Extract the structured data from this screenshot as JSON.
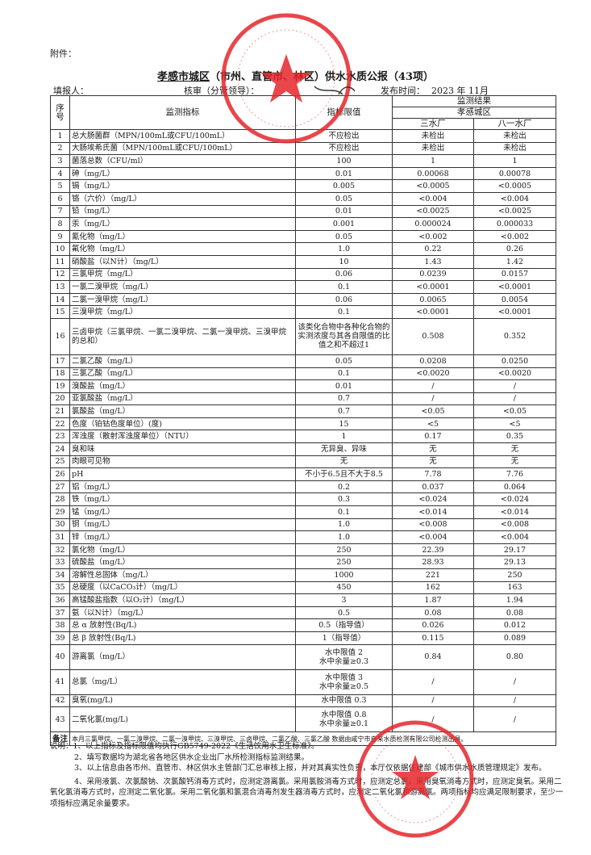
{
  "attachment_label": "附件：",
  "title_underlined": "孝感市城区",
  "title_rest": "（市州、直管市、林区）供水水质公报（43项）",
  "meta": {
    "filler_label": "填报人：",
    "reviewer_label": "核审（分管领导）：",
    "publish_label": "发布时间：",
    "publish_date": "2023 年 11月"
  },
  "table": {
    "headers": {
      "seq": "序号",
      "indicator": "监测指标",
      "limit": "指标限值",
      "results": "监测结果",
      "district": "孝感城区",
      "plant1": "三水厂",
      "plant2": "八一水厂"
    },
    "rows": [
      {
        "no": "1",
        "name": "总大肠菌群（MPN/100mL或CFU/100mL）",
        "limit": "不应检出",
        "p1": "未检出",
        "p2": "未检出"
      },
      {
        "no": "2",
        "name": "大肠埃希氏菌（MPN/100mL或CFU/100mL）",
        "limit": "不应检出",
        "p1": "未检出",
        "p2": "未检出"
      },
      {
        "no": "3",
        "name": "菌落总数（CFU/ml）",
        "limit": "100",
        "p1": "1",
        "p2": "1"
      },
      {
        "no": "4",
        "name": "砷（mg/L）",
        "limit": "0.01",
        "p1": "0.00068",
        "p2": "0.00078"
      },
      {
        "no": "5",
        "name": "镉（mg/L）",
        "limit": "0.005",
        "p1": "<0.0005",
        "p2": "<0.0005"
      },
      {
        "no": "6",
        "name": "铬（六价）（mg/L）",
        "limit": "0.05",
        "p1": "<0.004",
        "p2": "<0.004"
      },
      {
        "no": "7",
        "name": "铅（mg/L）",
        "limit": "0.01",
        "p1": "<0.0025",
        "p2": "<0.0025"
      },
      {
        "no": "8",
        "name": "汞（mg/L）",
        "limit": "0.001",
        "p1": "0.000024",
        "p2": "0.000033"
      },
      {
        "no": "9",
        "name": "氰化物（mg/L）",
        "limit": "0.05",
        "p1": "<0.002",
        "p2": "<0.002"
      },
      {
        "no": "10",
        "name": "氟化物（mg/L）",
        "limit": "1.0",
        "p1": "0.22",
        "p2": "0.26"
      },
      {
        "no": "11",
        "name": "硝酸盐（以N计）（mg/L）",
        "limit": "10",
        "p1": "1.43",
        "p2": "1.42"
      },
      {
        "no": "12",
        "name": "三氯甲烷（mg/L）",
        "limit": "0.06",
        "p1": "0.0239",
        "p2": "0.0157"
      },
      {
        "no": "13",
        "name": "一氯二溴甲烷（mg/L）",
        "limit": "0.1",
        "p1": "<0.0001",
        "p2": "<0.0001"
      },
      {
        "no": "14",
        "name": "二氯一溴甲烷（mg/L）",
        "limit": "0.06",
        "p1": "0.0065",
        "p2": "0.0054"
      },
      {
        "no": "15",
        "name": "三溴甲烷（mg/L）",
        "limit": "0.1",
        "p1": "<0.0001",
        "p2": "<0.0001"
      },
      {
        "no": "16",
        "name": "三卤甲烷（三氯甲烷、一氯二溴甲烷、二氯一溴甲烷、三溴甲烷的总和）",
        "limit": "该类化合物中各种化合物的实测浓度与其各自限值的比值之和不超过1",
        "p1": "0.508",
        "p2": "0.352",
        "tall": 3
      },
      {
        "no": "17",
        "name": "二氯乙酸（mg/L）",
        "limit": "0.05",
        "p1": "0.0208",
        "p2": "0.0250"
      },
      {
        "no": "18",
        "name": "三氯乙酸（mg/L）",
        "limit": "0.1",
        "p1": "<0.0020",
        "p2": "<0.0020"
      },
      {
        "no": "19",
        "name": "溴酸盐（mg/L）",
        "limit": "0.01",
        "p1": "/",
        "p2": "/"
      },
      {
        "no": "20",
        "name": "亚氯酸盐（mg/L）",
        "limit": "0.7",
        "p1": "/",
        "p2": "/"
      },
      {
        "no": "21",
        "name": "氯酸盐（mg/L）",
        "limit": "0.7",
        "p1": "<0.05",
        "p2": "<0.05"
      },
      {
        "no": "22",
        "name": "色度（铂钴色度单位）(度)",
        "limit": "15",
        "p1": "<5",
        "p2": "<5"
      },
      {
        "no": "23",
        "name": "浑浊度（散射浑浊度单位）（NTU）",
        "limit": "1",
        "p1": "0.17",
        "p2": "0.35"
      },
      {
        "no": "24",
        "name": "臭和味",
        "limit": "无异臭、异味",
        "p1": "无",
        "p2": "无"
      },
      {
        "no": "25",
        "name": "肉眼可见物",
        "limit": "无",
        "p1": "无",
        "p2": "无"
      },
      {
        "no": "26",
        "name": "pH",
        "limit": "不小于6.5且不大于8.5",
        "p1": "7.78",
        "p2": "7.76"
      },
      {
        "no": "27",
        "name": "铝（mg/L）",
        "limit": "0.2",
        "p1": "0.037",
        "p2": "0.064"
      },
      {
        "no": "28",
        "name": "铁（mg/L）",
        "limit": "0.3",
        "p1": "<0.024",
        "p2": "<0.024"
      },
      {
        "no": "29",
        "name": "锰（mg/L）",
        "limit": "0.1",
        "p1": "<0.014",
        "p2": "<0.014"
      },
      {
        "no": "30",
        "name": "铜（mg/L）",
        "limit": "1.0",
        "p1": "<0.008",
        "p2": "<0.008"
      },
      {
        "no": "31",
        "name": "锌（mg/L）",
        "limit": "1.0",
        "p1": "<0.004",
        "p2": "<0.004"
      },
      {
        "no": "32",
        "name": "氯化物（mg/L）",
        "limit": "250",
        "p1": "22.39",
        "p2": "29.17"
      },
      {
        "no": "33",
        "name": "硫酸盐（mg/L）",
        "limit": "250",
        "p1": "28.93",
        "p2": "29.13"
      },
      {
        "no": "34",
        "name": "溶解性总固体（mg/L）",
        "limit": "1000",
        "p1": "221",
        "p2": "250"
      },
      {
        "no": "35",
        "name": "总硬度（以CaCO₃计）（mg/L）",
        "limit": "450",
        "p1": "162",
        "p2": "163"
      },
      {
        "no": "36",
        "name": "高锰酸盐指数（以O₂计）（mg/L）",
        "limit": "3",
        "p1": "1.87",
        "p2": "1.94"
      },
      {
        "no": "37",
        "name": "氨（以N计）（mg/L）",
        "limit": "0.5",
        "p1": "0.08",
        "p2": "0.08"
      },
      {
        "no": "38",
        "name": "总 α 放射性(Bq/L)",
        "limit": "0.5（指导值）",
        "p1": "0.026",
        "p2": "0.012"
      },
      {
        "no": "39",
        "name": "总 β 放射性(Bq/L)",
        "limit": "1（指导值）",
        "p1": "0.115",
        "p2": "0.089"
      },
      {
        "no": "40",
        "name": "游离氯（mg/L）",
        "limit": "水中限值 2\n水中余量≥0.3",
        "p1": "0.84",
        "p2": "0.80",
        "tall": 2
      },
      {
        "no": "41",
        "name": "总氯（mg/L）",
        "limit": "水中限值 3\n水中余量≥0.5",
        "p1": "/",
        "p2": "/",
        "tall": 2
      },
      {
        "no": "42",
        "name": "臭氧(mg/L)",
        "limit": "水中限值 0.3",
        "p1": "/",
        "p2": "/"
      },
      {
        "no": "43",
        "name": "二氧化氯(mg/L)",
        "limit": "水中限值 0.8\n水中余量≥0.1",
        "p1": "/",
        "p2": "/",
        "tall": 2
      }
    ],
    "remark_label": "备注",
    "remark_text": "本月三氯甲烷、一氯二溴甲烷、二氯一溴甲烷、三溴甲烷、三卤甲烷、二氯乙酸、三氯乙酸 数据由咸宁市自来水质检测有限公司检测出具。"
  },
  "notes": {
    "label": "说明：",
    "items": [
      "1、以上指标及指标限值均执行GB5749-2022《生活饮用水卫生标准》。",
      "2、填写数据均为湖北省各地区供水企业出厂水所检测指标监测结果。",
      "3、以上信息由各市州、直管市、林区供水主管部门汇总审核上报，并对其真实性负责，本厅仅依据住建部《城市供水水质管理规定》发布。",
      "4、采用液氯、次氯酸钠、次氯酸钙消毒方式时，应测定游离氯。采用氯胺消毒方式时，应测定总氯。采用臭氧消毒方式时，应测定臭氧。采用二氧化氯消毒方式时，应测定二氧化氯。采用二氧化氯和氯混合消毒剂发生器消毒方式时，应测定二氧化氯和游离氯。两项指标均应满足限制要求，至少一项指标应满足余量要求。"
    ]
  },
  "stamps": {
    "top": {
      "text": "孝感市自来水有限公司",
      "code": "4209021005",
      "color": "#e5262b"
    },
    "bottom": {
      "text": "孝感市楚泉水质检测有限责任公司",
      "sub": "检验检测专用章",
      "color": "#e5262b"
    }
  }
}
